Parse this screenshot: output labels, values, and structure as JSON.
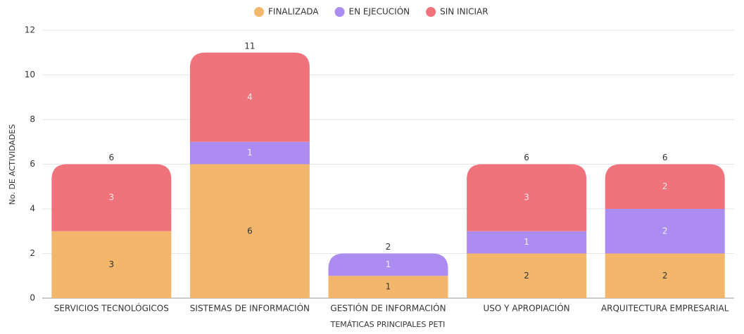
{
  "chart_data": {
    "type": "stacked_bar",
    "legend_title": null,
    "categories": [
      "SERVICIOS TECNOLÓGICOS",
      "SISTEMAS DE INFORMACIÓN",
      "GESTIÓN DE INFORMACIÓN",
      "USO Y APROPIACIÓN",
      "ARQUITECTURA EMPRESARIAL"
    ],
    "series": [
      {
        "name": "FINALIZADA",
        "color": "#f2b76b",
        "values": [
          3,
          6,
          1,
          2,
          2
        ]
      },
      {
        "name": "EN EJECUCIÓN",
        "color": "#ad8cf2",
        "values": [
          0,
          1,
          1,
          1,
          2
        ]
      },
      {
        "name": "SIN INICIAR",
        "color": "#f0737c",
        "values": [
          3,
          4,
          0,
          3,
          2
        ]
      }
    ],
    "totals": [
      6,
      11,
      2,
      6,
      6
    ],
    "xlabel": "TEMÁTICAS PRINCIPALES PETI",
    "ylabel": "No. DE ACTIVIDADES",
    "ylim": [
      0,
      12
    ],
    "yticks": [
      0,
      2,
      4,
      6,
      8,
      10,
      12
    ],
    "grid": true,
    "legend": "top"
  }
}
